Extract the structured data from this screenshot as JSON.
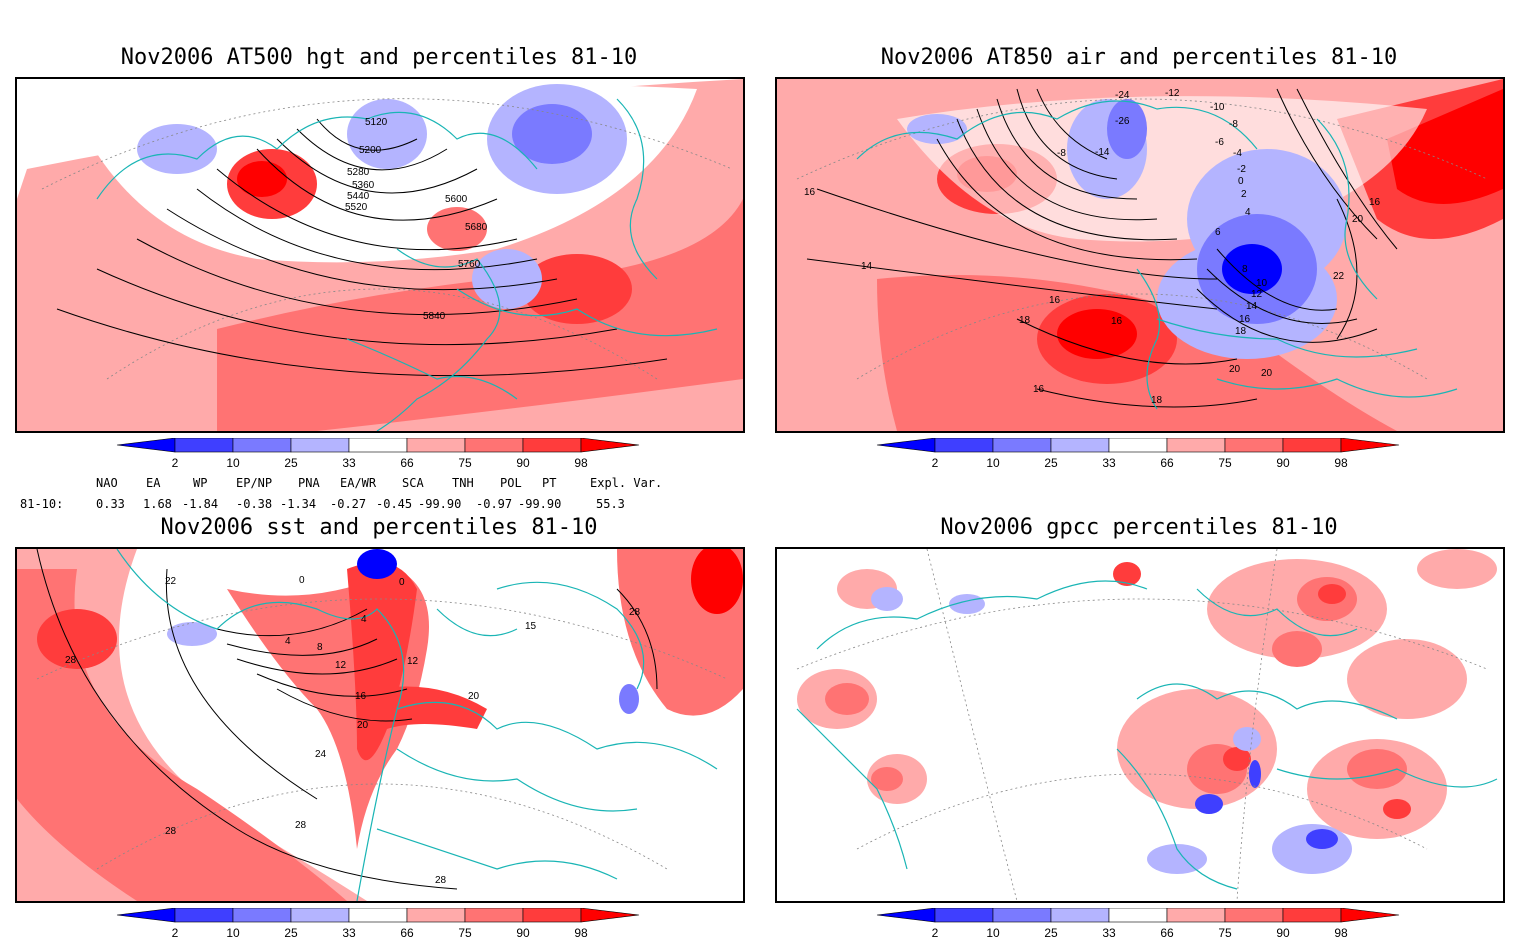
{
  "panels": [
    {
      "title": "Nov2006 AT500 hgt and percentiles 81-10",
      "contour_labels": [
        "5120",
        "5200",
        "5280",
        "5360",
        "5440",
        "5520",
        "5600",
        "5680",
        "5760",
        "5840"
      ]
    },
    {
      "title": "Nov2006 AT850 air and percentiles 81-10",
      "contour_labels": [
        "-24",
        "-12",
        "-10",
        "-26",
        "-8",
        "-8",
        "-14",
        "-6",
        "-4",
        "-2",
        "0",
        "2",
        "4",
        "6",
        "8",
        "10",
        "12",
        "14",
        "16",
        "18",
        "16",
        "18",
        "14",
        "16",
        "20",
        "22",
        "16",
        "20",
        "20",
        "16",
        "18",
        "16"
      ]
    },
    {
      "title": "Nov2006 sst and percentiles 81-10",
      "contour_labels": [
        "22",
        "0",
        "0",
        "4",
        "4",
        "8",
        "12",
        "16",
        "20",
        "24",
        "28",
        "28",
        "28",
        "28",
        "12",
        "15",
        "20",
        "28"
      ]
    },
    {
      "title": "Nov2006 gpcc percentiles 81-10",
      "contour_labels": []
    }
  ],
  "colorbar": {
    "labels": [
      "2",
      "10",
      "25",
      "33",
      "66",
      "75",
      "90",
      "98"
    ],
    "colors": [
      "#0000ff",
      "#3f3fff",
      "#7a7aff",
      "#b4b4ff",
      "#ffffff",
      "#ffaaaa",
      "#ff7373",
      "#ff3c3c",
      "#ff0000"
    ]
  },
  "indices": {
    "headers": [
      "NAO",
      "EA",
      "WP",
      "EP/NP",
      "PNA",
      "EA/WR",
      "SCA",
      "TNH",
      "POL",
      "PT",
      "Expl. Var."
    ],
    "row_label": "81-10:",
    "values": [
      "0.33",
      "1.68",
      "-1.84",
      "-0.38",
      "-1.34",
      "-0.27",
      "-0.45",
      "-99.90",
      "-0.97",
      "-99.90",
      "55.3"
    ]
  }
}
